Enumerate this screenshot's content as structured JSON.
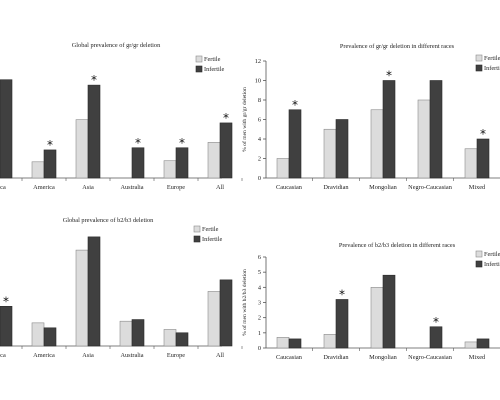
{
  "colors": {
    "fertile": "#dcdcdc",
    "infertile": "#404040",
    "axis": "#555555"
  },
  "chart_data": [
    {
      "type": "bar",
      "title": "Global prevalence of gr/gr deletion",
      "categories": [
        "frica",
        "America",
        "Asia",
        "Australia",
        "Europe",
        "All"
      ],
      "series": [
        {
          "name": "Fertile",
          "values": [
            null,
            1.5,
            5.4,
            null,
            1.6,
            3.3
          ]
        },
        {
          "name": "Infertile",
          "values": [
            9.1,
            2.6,
            8.6,
            2.8,
            2.8,
            5.1
          ]
        }
      ],
      "significant": [
        false,
        true,
        true,
        true,
        true,
        true
      ],
      "ylabel": "",
      "ylim": [
        0,
        10
      ],
      "yticks": [],
      "legend": "top-right"
    },
    {
      "type": "bar",
      "title": "Prevalence of gr/gr deletion in different races",
      "categories": [
        "Caucasian",
        "Dravidian",
        "Mongolian",
        "Negro-Caucasian",
        "Mixed"
      ],
      "series": [
        {
          "name": "Fertile",
          "values": [
            2,
            5,
            7,
            8,
            3
          ]
        },
        {
          "name": "Infertile",
          "values": [
            7,
            6,
            10,
            10,
            4
          ]
        }
      ],
      "significant": [
        true,
        false,
        true,
        false,
        true
      ],
      "ylabel": "% of men with gr/gr deletion",
      "ylim": [
        0,
        12
      ],
      "yticks": [
        "0",
        "2",
        "4",
        "6",
        "8",
        "10",
        "12"
      ],
      "legend": "top-right"
    },
    {
      "type": "bar",
      "title": "Global prevalence of b2/b3 deletion",
      "categories": [
        "frica",
        "America",
        "Asia",
        "Australia",
        "Europe",
        "All"
      ],
      "series": [
        {
          "name": "Fertile",
          "values": [
            null,
            1.4,
            5.8,
            1.5,
            1.0,
            3.3
          ]
        },
        {
          "name": "Infertile",
          "values": [
            2.4,
            1.1,
            6.6,
            1.6,
            0.8,
            4.0
          ]
        }
      ],
      "significant": [
        true,
        false,
        false,
        false,
        false,
        false
      ],
      "ylabel": "",
      "ylim": [
        0,
        7.5
      ],
      "yticks": [],
      "legend": "top-right"
    },
    {
      "type": "bar",
      "title": "Prevalence of b2/b3 deletion in different races",
      "categories": [
        "Caucasian",
        "Dravidian",
        "Mongolian",
        "Negro-Caucasian",
        "Mixed"
      ],
      "series": [
        {
          "name": "Fertile",
          "values": [
            0.7,
            0.9,
            4.0,
            null,
            0.4
          ]
        },
        {
          "name": "Infertile",
          "values": [
            0.6,
            3.2,
            4.8,
            1.4,
            0.6
          ]
        }
      ],
      "significant": [
        false,
        true,
        false,
        true,
        false
      ],
      "ylabel": "% of men with b2/b3 deletion",
      "ylim": [
        0,
        6
      ],
      "yticks": [
        "0",
        "1",
        "2",
        "3",
        "4",
        "5",
        "6"
      ],
      "legend": "top-right"
    }
  ]
}
